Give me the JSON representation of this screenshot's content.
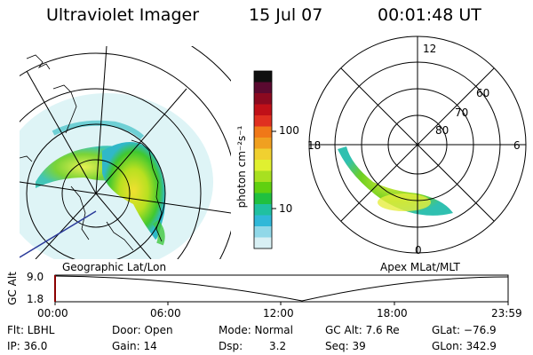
{
  "header": {
    "instrument": "Ultraviolet Imager",
    "date": "15 Jul 07",
    "time": "00:01:48 UT"
  },
  "colorbar": {
    "unit_label": "photon cm⁻²s⁻¹",
    "ticks": [
      "100",
      "10"
    ],
    "colors": [
      "#101010",
      "#5a0a30",
      "#8b0a20",
      "#c01018",
      "#e03020",
      "#f07818",
      "#f0a020",
      "#f0d030",
      "#e0f030",
      "#a8e020",
      "#60d010",
      "#20c040",
      "#20c0a0",
      "#30b8d8",
      "#90d8e8",
      "#d8f0f4"
    ]
  },
  "left_panel": {
    "label": "Geographic Lat/Lon"
  },
  "right_panel": {
    "label": "Apex MLat/MLT",
    "mlt_labels": {
      "top": "12",
      "left": "18",
      "right": "6",
      "bottom": "0"
    },
    "lat_labels": [
      "60",
      "70",
      "80"
    ]
  },
  "altitude_plot": {
    "ylabel": "GC Alt",
    "y_ticks": [
      "9.0",
      "1.8"
    ],
    "x_ticks": [
      "00:00",
      "06:00",
      "12:00",
      "18:00",
      "23:59"
    ]
  },
  "footer": {
    "row1": {
      "flt": "Flt: LBHL",
      "door": "Door: Open",
      "mode": "Mode: Normal",
      "gc_alt": "GC Alt: 7.6 Re",
      "glat": "GLat: −76.9"
    },
    "row2": {
      "ip": "IP: 36.0",
      "gain": "Gain: 14",
      "dsp_label": "Dsp:",
      "dsp_value": "3.2",
      "seq": "Seq: 39",
      "glon": "GLon: 342.9"
    }
  }
}
